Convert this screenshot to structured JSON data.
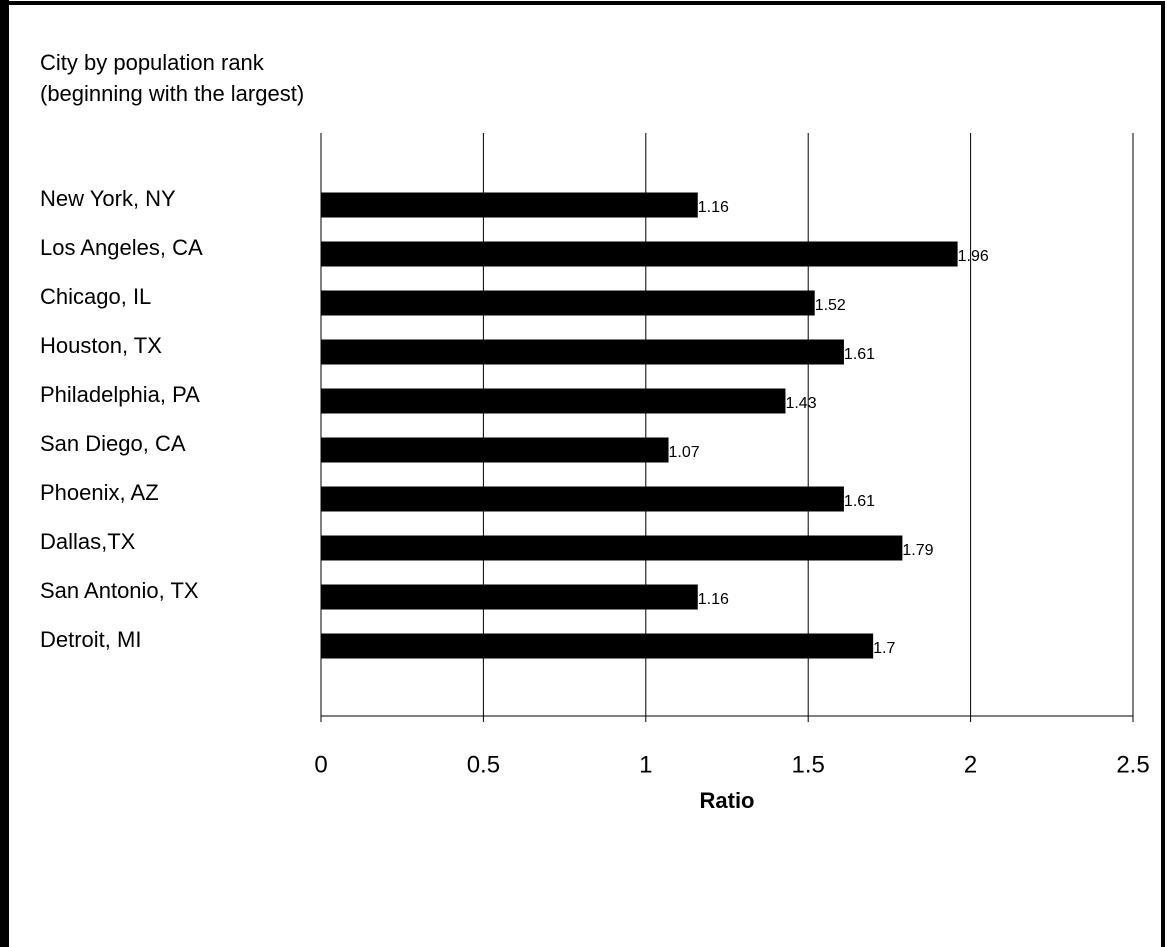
{
  "chart_data": {
    "type": "bar",
    "orientation": "horizontal",
    "y_label": "City by population rank (beginning with the largest)",
    "x_label": "Ratio",
    "categories": [
      "New York, NY",
      "Los Angeles, CA",
      "Chicago, IL",
      "Houston, TX",
      "Philadelphia, PA",
      "San Diego, CA",
      "Phoenix, AZ",
      "Dallas,TX",
      "San Antonio, TX",
      "Detroit, MI"
    ],
    "values": [
      1.16,
      1.96,
      1.52,
      1.61,
      1.43,
      1.07,
      1.61,
      1.79,
      1.16,
      1.7
    ],
    "color": "#000000",
    "xlim": [
      0,
      2.5
    ],
    "xticks": [
      0,
      0.5,
      1,
      1.5,
      2,
      2.5
    ],
    "grid": true
  }
}
